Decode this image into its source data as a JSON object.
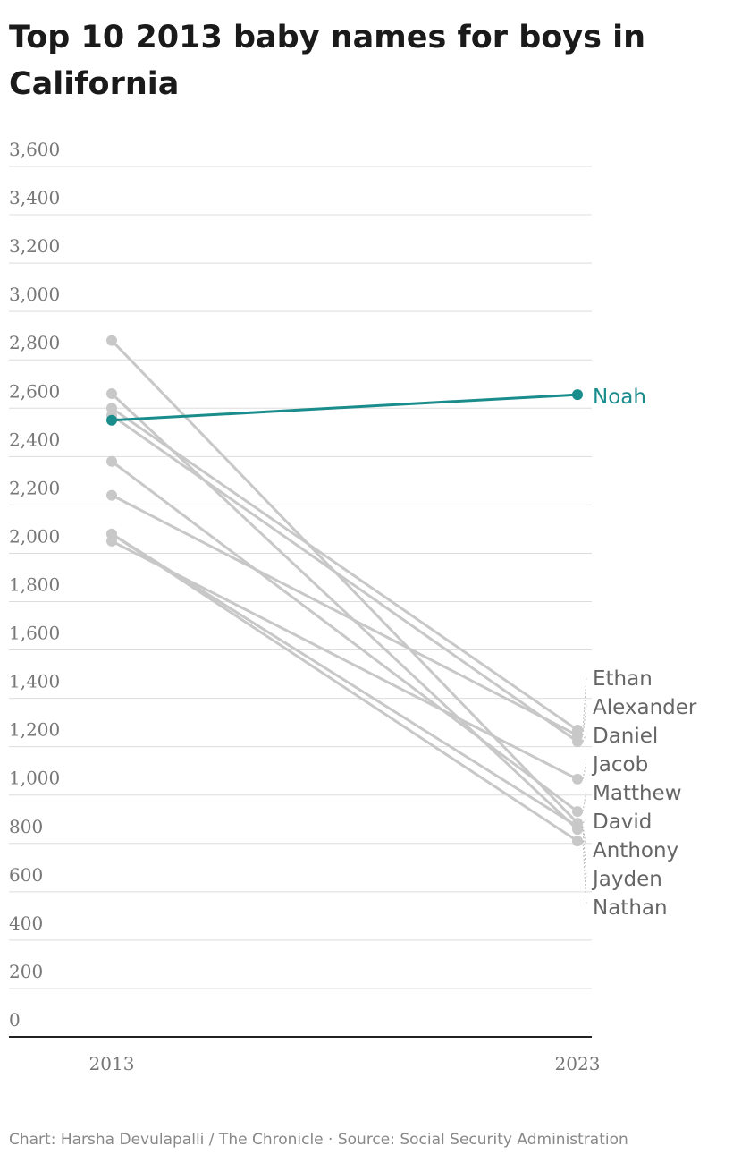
{
  "chart_data": {
    "type": "slope",
    "title": "Top 10 2013 baby names for boys in California",
    "source": "Chart: Harsha Devulapalli / The Chronicle · Source: Social Security Administration",
    "categories": [
      "2013",
      "2023"
    ],
    "series": [
      {
        "name": "Ethan",
        "color": "#c8c8c8",
        "values": [
          2600,
          1269
        ]
      },
      {
        "name": "Alexander",
        "color": "#c8c8c8",
        "values": [
          2240,
          1247
        ]
      },
      {
        "name": "Daniel",
        "color": "#c8c8c8",
        "values": [
          2570,
          1221
        ]
      },
      {
        "name": "Jacob",
        "color": "#c8c8c8",
        "values": [
          2050,
          1066
        ]
      },
      {
        "name": "Matthew",
        "color": "#c8c8c8",
        "values": [
          2380,
          932
        ]
      },
      {
        "name": "David",
        "color": "#c8c8c8",
        "values": [
          2880,
          884
        ]
      },
      {
        "name": "Anthony",
        "color": "#c8c8c8",
        "values": [
          2080,
          870
        ]
      },
      {
        "name": "Jayden",
        "color": "#c8c8c8",
        "values": [
          2660,
          858
        ]
      },
      {
        "name": "Nathan",
        "color": "#c8c8c8",
        "values": [
          2080,
          810
        ]
      },
      {
        "name": "Noah",
        "color": "#1a8c8c",
        "values": [
          2550,
          2656
        ]
      }
    ],
    "ylim": [
      0,
      3600
    ],
    "yticks": [
      0,
      200,
      400,
      600,
      800,
      {
        "value": 1000,
        "label": "1,000"
      },
      {
        "value": 1200,
        "label": "1,200"
      },
      {
        "value": 1400,
        "label": "1,400"
      },
      {
        "value": 1600,
        "label": "1,600"
      },
      {
        "value": 1800,
        "label": "1,800"
      },
      {
        "value": 2000,
        "label": "2,000"
      },
      {
        "value": 2200,
        "label": "2,200"
      },
      {
        "value": 2400,
        "label": "2,400"
      },
      {
        "value": 2600,
        "label": "2,600"
      },
      {
        "value": 2800,
        "label": "2,800"
      },
      {
        "value": 3000,
        "label": "3,000"
      },
      {
        "value": 3200,
        "label": "3,200"
      },
      {
        "value": 3400,
        "label": "3,400"
      },
      {
        "value": 3600,
        "label": "3,600"
      }
    ],
    "grid": true
  }
}
